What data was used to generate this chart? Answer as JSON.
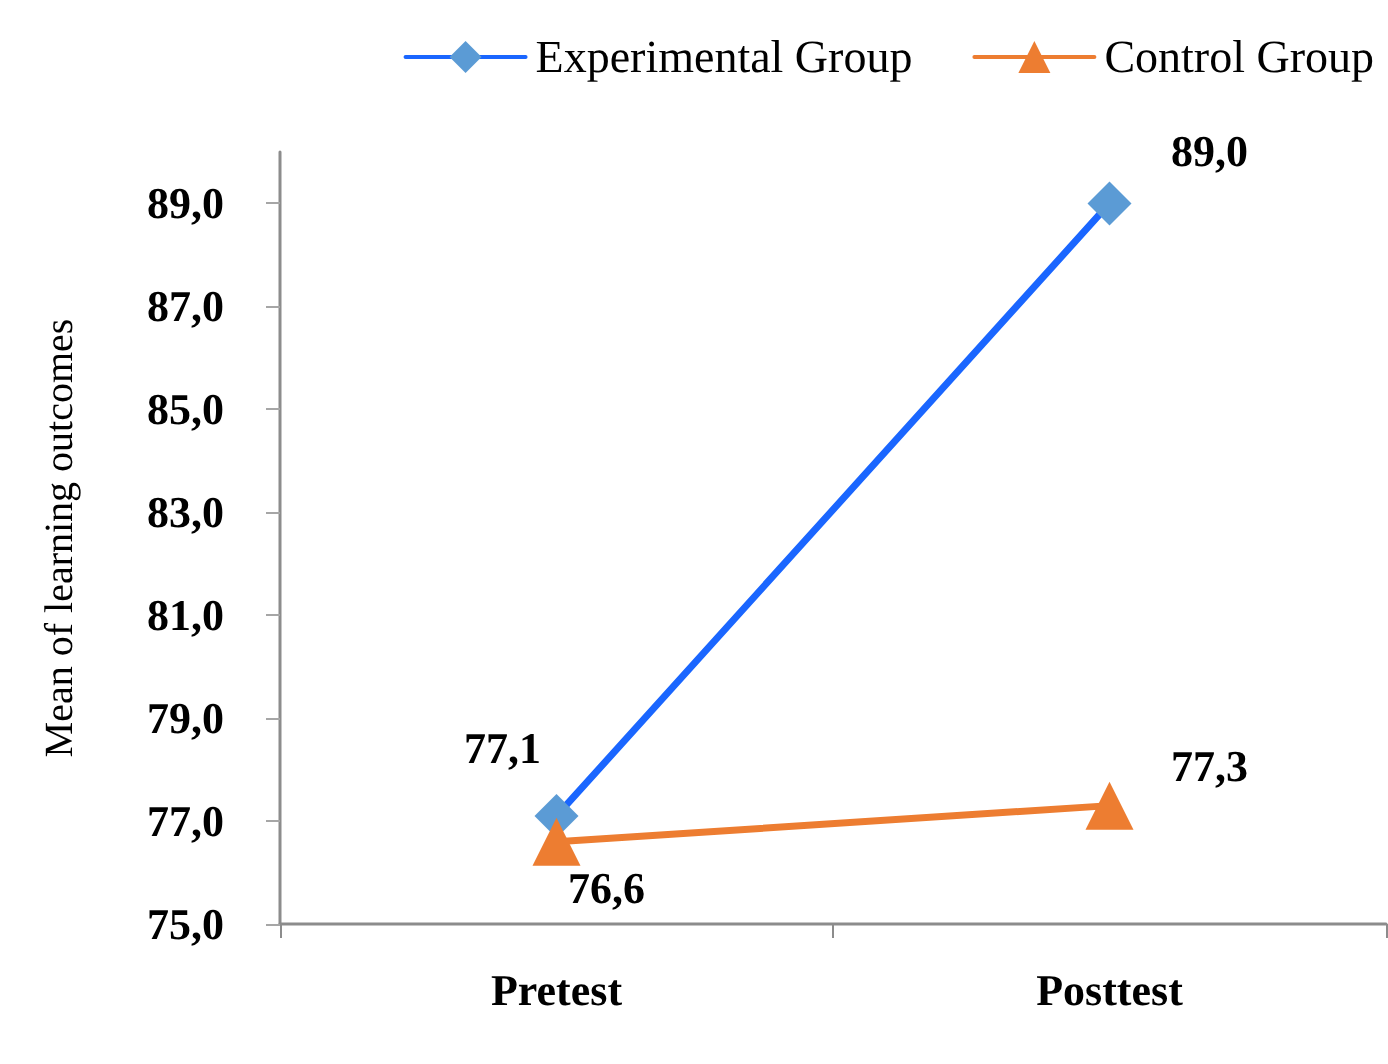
{
  "chart_data": {
    "type": "line",
    "ylabel": "Mean of learning outcomes",
    "categories": [
      "Pretest",
      "Posttest"
    ],
    "series": [
      {
        "name": "Experimental Group",
        "color": "#1a66ff",
        "colors": [
          "#5b9bd5",
          "#5b9bd5"
        ],
        "marker": "diamond",
        "values": [
          77.1,
          89.0
        ],
        "value_labels": [
          "77,1",
          "89,0"
        ]
      },
      {
        "name": "Control Group",
        "color": "#ed7d31",
        "marker": "triangle",
        "values": [
          76.6,
          77.3
        ],
        "value_labels": [
          "76,6",
          "77,3"
        ]
      }
    ],
    "ylim": [
      75,
      90
    ],
    "yticks": [
      {
        "value": 75,
        "label": "75,0"
      },
      {
        "value": 77,
        "label": "77,0"
      },
      {
        "value": 79,
        "label": "79,0"
      },
      {
        "value": 81,
        "label": "81,0"
      },
      {
        "value": 83,
        "label": "83,0"
      },
      {
        "value": 85,
        "label": "85,0"
      },
      {
        "value": 87,
        "label": "87,0"
      },
      {
        "value": 89,
        "label": "89,0"
      }
    ],
    "legend": "top right"
  }
}
